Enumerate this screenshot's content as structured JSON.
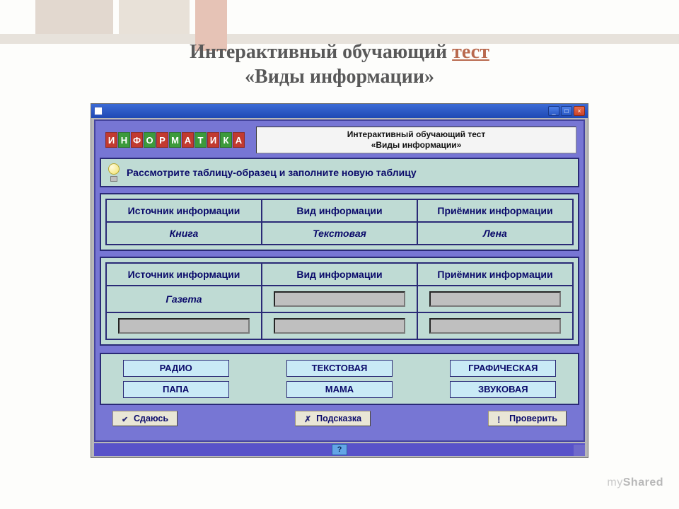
{
  "slide": {
    "title_pre": "Интерактивный обучающий ",
    "title_link": "тест",
    "title_post": "",
    "subtitle": "«Виды информации»"
  },
  "window": {
    "btn_min": "_",
    "btn_max": "□",
    "btn_close": "×"
  },
  "logo_letters": [
    "И",
    "Н",
    "Ф",
    "О",
    "Р",
    "М",
    "А",
    "Т",
    "И",
    "К",
    "А"
  ],
  "logo_colors": [
    "red",
    "grn",
    "red",
    "grn",
    "red",
    "grn",
    "red",
    "grn",
    "red",
    "grn",
    "red"
  ],
  "header_box": {
    "line1": "Интерактивный обучающий тест",
    "line2": "«Виды информации»"
  },
  "instruction": "Рассмотрите таблицу-образец и заполните новую таблицу",
  "columns": {
    "c1": "Источник информации",
    "c2": "Вид информации",
    "c3": "Приёмник информации"
  },
  "example_row": {
    "c1": "Книга",
    "c2": "Текстовая",
    "c3": "Лена"
  },
  "work_rows": [
    {
      "c1_label": "Газета"
    }
  ],
  "options": [
    "РАДИО",
    "ТЕКСТОВАЯ",
    "ГРАФИЧЕСКАЯ",
    "ПАПА",
    "МАМА",
    "ЗВУКОВАЯ"
  ],
  "actions": {
    "giveup": "Сдаюсь",
    "hint": "Подсказка",
    "check": "Проверить"
  },
  "status_help": "?",
  "watermark": {
    "a": "my",
    "b": "Shared"
  },
  "colors": {
    "app_purple": "#7776d4",
    "frame_navy": "#2a2a76",
    "panel_teal": "#bfdbd4",
    "text_navy": "#0a0a6a",
    "example_green": "#2f6f3a",
    "drag_cyan": "#c9eaf6",
    "btn_beige": "#e9e6d6"
  }
}
